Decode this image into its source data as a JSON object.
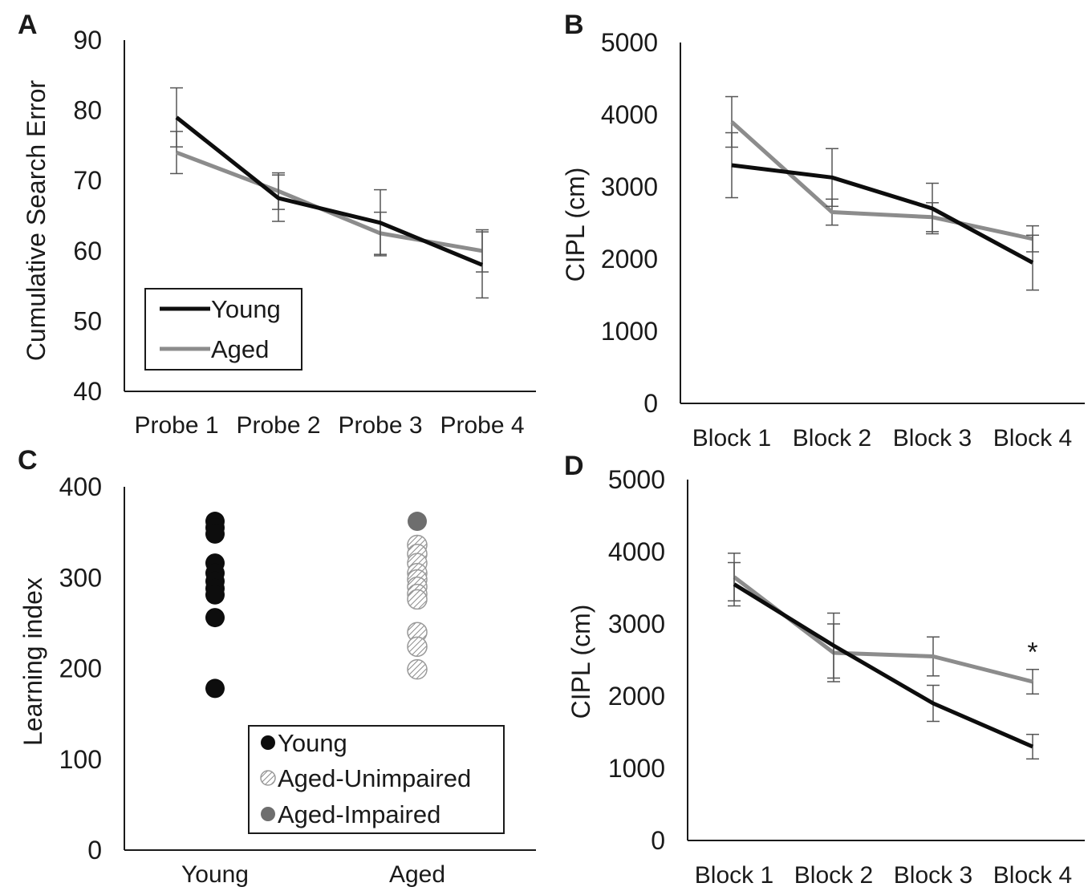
{
  "colors": {
    "young": "#0d0d0d",
    "aged": "#8c8c8c",
    "aged_impaired": "#6e6e6e",
    "error_bar": "#555555",
    "axis": "#1a1a1a"
  },
  "chart_data": [
    {
      "panel": "A",
      "type": "line",
      "categories": [
        "Probe 1",
        "Probe 2",
        "Probe 3",
        "Probe 4"
      ],
      "ylabel": "Cumulative  Search Error",
      "xlabel": "",
      "ylim": [
        40,
        90
      ],
      "yticks": [
        "40",
        "50",
        "60",
        "70",
        "80",
        "90"
      ],
      "legend": {
        "placement": "bottom-left",
        "entries": [
          "Young",
          "Aged"
        ]
      },
      "series": [
        {
          "name": "Young",
          "values": [
            79,
            67.5,
            64,
            58
          ],
          "errors": [
            4.2,
            3.3,
            4.7,
            4.7
          ]
        },
        {
          "name": "Aged",
          "values": [
            74,
            68.5,
            62.5,
            60
          ],
          "errors": [
            3,
            2.6,
            3,
            3
          ]
        }
      ]
    },
    {
      "panel": "B",
      "type": "line",
      "categories": [
        "Block 1",
        "Block 2",
        "Block 3",
        "Block 4"
      ],
      "ylabel": "CIPL (cm)",
      "xlabel": "",
      "ylim": [
        0,
        5000
      ],
      "yticks": [
        "0",
        "1000",
        "2000",
        "3000",
        "4000",
        "5000"
      ],
      "series": [
        {
          "name": "Young",
          "values": [
            3300,
            3130,
            2700,
            1950
          ],
          "errors": [
            450,
            400,
            350,
            380
          ]
        },
        {
          "name": "Aged",
          "values": [
            3900,
            2650,
            2580,
            2280
          ],
          "errors": [
            350,
            180,
            200,
            180
          ]
        }
      ]
    },
    {
      "panel": "C",
      "type": "scatter",
      "categories": [
        "Young",
        "Aged"
      ],
      "ylabel": "Learning index",
      "xlabel": "",
      "ylim": [
        0,
        400
      ],
      "yticks": [
        "0",
        "100",
        "200",
        "300",
        "400"
      ],
      "legend": {
        "placement": "bottom-right",
        "entries": [
          "Young",
          "Aged-Unimpaired",
          "Aged-Impaired"
        ]
      },
      "series": [
        {
          "name": "Young",
          "category": "Young",
          "values": [
            362,
            355,
            348,
            316,
            305,
            296,
            288,
            281,
            256,
            178
          ]
        },
        {
          "name": "Aged-Unimpaired",
          "category": "Aged",
          "values": [
            336,
            326,
            316,
            305,
            298,
            290,
            282,
            276,
            240,
            224,
            199
          ]
        },
        {
          "name": "Aged-Impaired",
          "category": "Aged",
          "values": [
            362
          ]
        }
      ]
    },
    {
      "panel": "D",
      "type": "line",
      "categories": [
        "Block 1",
        "Block 2",
        "Block 3",
        "Block 4"
      ],
      "ylabel": "CIPL (cm)",
      "xlabel": "",
      "ylim": [
        0,
        5000
      ],
      "yticks": [
        "0",
        "1000",
        "2000",
        "3000",
        "4000",
        "5000"
      ],
      "annotations": [
        {
          "text": "*",
          "category": "Block 4",
          "series": "Aged"
        }
      ],
      "series": [
        {
          "name": "Young",
          "values": [
            3550,
            2700,
            1900,
            1300
          ],
          "errors": [
            300,
            450,
            250,
            170
          ]
        },
        {
          "name": "Aged",
          "values": [
            3650,
            2600,
            2550,
            2200
          ],
          "errors": [
            330,
            400,
            270,
            170
          ]
        }
      ]
    }
  ]
}
